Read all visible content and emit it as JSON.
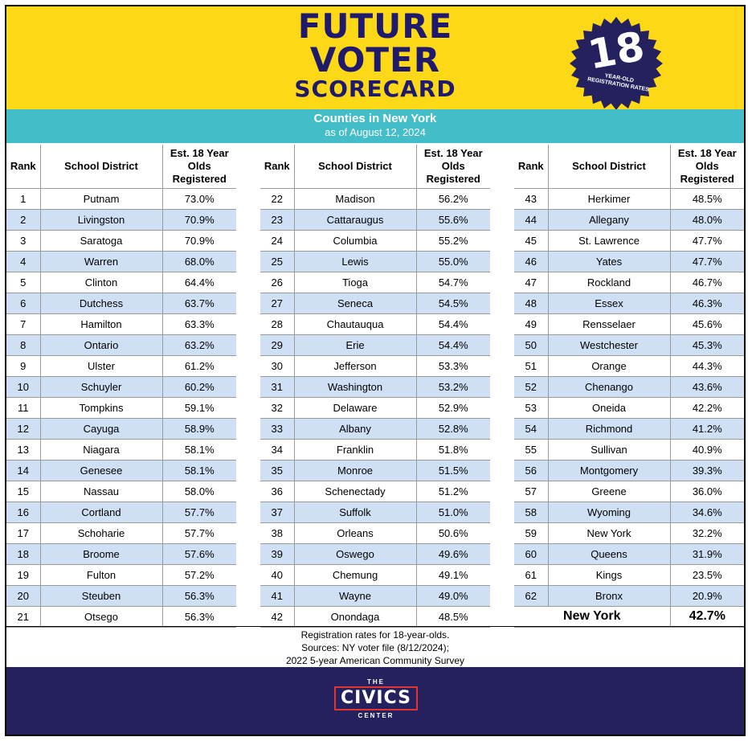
{
  "title": {
    "line1": "FUTURE",
    "line2": "VOTER",
    "line3": "SCORECARD"
  },
  "badge": {
    "number": "18",
    "caption": "YEAR-OLD REGISTRATION RATES"
  },
  "subtitle": {
    "line1": "Counties in New York",
    "line2": "as of August 12, 2024"
  },
  "columns": {
    "rank": "Rank",
    "district": "School District",
    "rate": "Est. 18 Year Olds Registered"
  },
  "tables": [
    [
      {
        "rank": "1",
        "name": "Putnam",
        "rate": "73.0%"
      },
      {
        "rank": "2",
        "name": "Livingston",
        "rate": "70.9%"
      },
      {
        "rank": "3",
        "name": "Saratoga",
        "rate": "70.9%"
      },
      {
        "rank": "4",
        "name": "Warren",
        "rate": "68.0%"
      },
      {
        "rank": "5",
        "name": "Clinton",
        "rate": "64.4%"
      },
      {
        "rank": "6",
        "name": "Dutchess",
        "rate": "63.7%"
      },
      {
        "rank": "7",
        "name": "Hamilton",
        "rate": "63.3%"
      },
      {
        "rank": "8",
        "name": "Ontario",
        "rate": "63.2%"
      },
      {
        "rank": "9",
        "name": "Ulster",
        "rate": "61.2%"
      },
      {
        "rank": "10",
        "name": "Schuyler",
        "rate": "60.2%"
      },
      {
        "rank": "11",
        "name": "Tompkins",
        "rate": "59.1%"
      },
      {
        "rank": "12",
        "name": "Cayuga",
        "rate": "58.9%"
      },
      {
        "rank": "13",
        "name": "Niagara",
        "rate": "58.1%"
      },
      {
        "rank": "14",
        "name": "Genesee",
        "rate": "58.1%"
      },
      {
        "rank": "15",
        "name": "Nassau",
        "rate": "58.0%"
      },
      {
        "rank": "16",
        "name": "Cortland",
        "rate": "57.7%"
      },
      {
        "rank": "17",
        "name": "Schoharie",
        "rate": "57.7%"
      },
      {
        "rank": "18",
        "name": "Broome",
        "rate": "57.6%"
      },
      {
        "rank": "19",
        "name": "Fulton",
        "rate": "57.2%"
      },
      {
        "rank": "20",
        "name": "Steuben",
        "rate": "56.3%"
      },
      {
        "rank": "21",
        "name": "Otsego",
        "rate": "56.3%"
      }
    ],
    [
      {
        "rank": "22",
        "name": "Madison",
        "rate": "56.2%"
      },
      {
        "rank": "23",
        "name": "Cattaraugus",
        "rate": "55.6%"
      },
      {
        "rank": "24",
        "name": "Columbia",
        "rate": "55.2%"
      },
      {
        "rank": "25",
        "name": "Lewis",
        "rate": "55.0%"
      },
      {
        "rank": "26",
        "name": "Tioga",
        "rate": "54.7%"
      },
      {
        "rank": "27",
        "name": "Seneca",
        "rate": "54.5%"
      },
      {
        "rank": "28",
        "name": "Chautauqua",
        "rate": "54.4%"
      },
      {
        "rank": "29",
        "name": "Erie",
        "rate": "54.4%"
      },
      {
        "rank": "30",
        "name": "Jefferson",
        "rate": "53.3%"
      },
      {
        "rank": "31",
        "name": "Washington",
        "rate": "53.2%"
      },
      {
        "rank": "32",
        "name": "Delaware",
        "rate": "52.9%"
      },
      {
        "rank": "33",
        "name": "Albany",
        "rate": "52.8%"
      },
      {
        "rank": "34",
        "name": "Franklin",
        "rate": "51.8%"
      },
      {
        "rank": "35",
        "name": "Monroe",
        "rate": "51.5%"
      },
      {
        "rank": "36",
        "name": "Schenectady",
        "rate": "51.2%"
      },
      {
        "rank": "37",
        "name": "Suffolk",
        "rate": "51.0%"
      },
      {
        "rank": "38",
        "name": "Orleans",
        "rate": "50.6%"
      },
      {
        "rank": "39",
        "name": "Oswego",
        "rate": "49.6%"
      },
      {
        "rank": "40",
        "name": "Chemung",
        "rate": "49.1%"
      },
      {
        "rank": "41",
        "name": "Wayne",
        "rate": "49.0%"
      },
      {
        "rank": "42",
        "name": "Onondaga",
        "rate": "48.5%"
      }
    ],
    [
      {
        "rank": "43",
        "name": "Herkimer",
        "rate": "48.5%"
      },
      {
        "rank": "44",
        "name": "Allegany",
        "rate": "48.0%"
      },
      {
        "rank": "45",
        "name": "St. Lawrence",
        "rate": "47.7%"
      },
      {
        "rank": "46",
        "name": "Yates",
        "rate": "47.7%"
      },
      {
        "rank": "47",
        "name": "Rockland",
        "rate": "46.7%"
      },
      {
        "rank": "48",
        "name": "Essex",
        "rate": "46.3%"
      },
      {
        "rank": "49",
        "name": "Rensselaer",
        "rate": "45.6%"
      },
      {
        "rank": "50",
        "name": "Westchester",
        "rate": "45.3%"
      },
      {
        "rank": "51",
        "name": "Orange",
        "rate": "44.3%"
      },
      {
        "rank": "52",
        "name": "Chenango",
        "rate": "43.6%"
      },
      {
        "rank": "53",
        "name": "Oneida",
        "rate": "42.2%"
      },
      {
        "rank": "54",
        "name": "Richmond",
        "rate": "41.2%"
      },
      {
        "rank": "55",
        "name": "Sullivan",
        "rate": "40.9%"
      },
      {
        "rank": "56",
        "name": "Montgomery",
        "rate": "39.3%"
      },
      {
        "rank": "57",
        "name": "Greene",
        "rate": "36.0%"
      },
      {
        "rank": "58",
        "name": "Wyoming",
        "rate": "34.6%"
      },
      {
        "rank": "59",
        "name": "New York",
        "rate": "32.2%"
      },
      {
        "rank": "60",
        "name": "Queens",
        "rate": "31.9%"
      },
      {
        "rank": "61",
        "name": "Kings",
        "rate": "23.5%"
      },
      {
        "rank": "62",
        "name": "Bronx",
        "rate": "20.9%"
      }
    ]
  ],
  "state_total": {
    "name": "New York",
    "rate": "42.7%"
  },
  "notes": [
    "Registration rates for 18-year-olds.",
    "Sources: NY voter file (8/12/2024);",
    "2022 5-year American Community Survey"
  ],
  "logo": {
    "the": "THE",
    "civics": "CIVICS",
    "center": "CENTER"
  },
  "colors": {
    "yellow": "#fdd817",
    "navy": "#25215f",
    "teal": "#43bdc8",
    "row_alt": "#cfe0f4",
    "red": "#e3342f"
  }
}
